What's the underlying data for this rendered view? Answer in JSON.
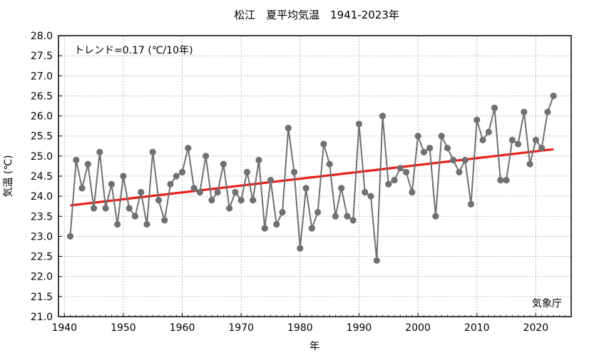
{
  "chart_data": {
    "type": "line",
    "title": "松江　夏平均気温　1941-2023年",
    "xlabel": "年",
    "ylabel": "気温 (℃)",
    "trend_label": "トレンド=0.17 (℃/10年)",
    "source": "気象庁",
    "xlim": [
      1939,
      2026
    ],
    "ylim": [
      21.0,
      28.0
    ],
    "xticks": [
      1940,
      1950,
      1960,
      1970,
      1980,
      1990,
      2000,
      2010,
      2020
    ],
    "yticks": [
      "21.0",
      "21.5",
      "22.0",
      "22.5",
      "23.0",
      "23.5",
      "24.0",
      "24.5",
      "25.0",
      "25.5",
      "26.0",
      "26.5",
      "27.0",
      "27.5",
      "28.0"
    ],
    "grid": true,
    "series": [
      {
        "color": "#707070",
        "x": [
          1941,
          1942,
          1943,
          1944,
          1945,
          1946,
          1947,
          1948,
          1949,
          1950,
          1951,
          1952,
          1953,
          1954,
          1955,
          1956,
          1957,
          1958,
          1959,
          1960,
          1961,
          1962,
          1963,
          1964,
          1965,
          1966,
          1967,
          1968,
          1969,
          1970,
          1971,
          1972,
          1973,
          1974,
          1975,
          1976,
          1977,
          1978,
          1979,
          1980,
          1981,
          1982,
          1983,
          1984,
          1985,
          1986,
          1987,
          1988,
          1989,
          1990,
          1991,
          1992,
          1993,
          1994,
          1995,
          1996,
          1997,
          1998,
          1999,
          2000,
          2001,
          2002,
          2003,
          2004,
          2005,
          2006,
          2007,
          2008,
          2009,
          2010,
          2011,
          2012,
          2013,
          2014,
          2015,
          2016,
          2017,
          2018,
          2019,
          2020,
          2021,
          2022,
          2023
        ],
        "y": [
          23.0,
          24.9,
          24.2,
          24.8,
          23.7,
          25.1,
          23.7,
          24.3,
          23.3,
          24.5,
          23.7,
          23.5,
          24.1,
          23.3,
          25.1,
          23.9,
          23.4,
          24.3,
          24.5,
          24.6,
          25.2,
          24.2,
          24.1,
          25.0,
          23.9,
          24.1,
          24.8,
          23.7,
          24.1,
          23.9,
          24.6,
          23.9,
          24.9,
          23.2,
          24.4,
          23.3,
          23.6,
          25.7,
          24.6,
          22.7,
          24.2,
          23.2,
          23.6,
          25.3,
          24.8,
          23.5,
          24.2,
          23.5,
          23.4,
          25.8,
          24.1,
          24.0,
          22.4,
          26.0,
          24.3,
          24.4,
          24.7,
          24.6,
          24.1,
          25.5,
          25.1,
          25.2,
          23.5,
          25.5,
          25.2,
          24.9,
          24.6,
          24.9,
          23.8,
          25.9,
          25.4,
          25.6,
          26.2,
          24.4,
          24.4,
          25.4,
          25.3,
          26.1,
          24.8,
          25.4,
          25.2,
          26.1,
          26.5
        ]
      }
    ],
    "trend": {
      "color": "#e8211b",
      "x": [
        1941,
        2023
      ],
      "y": [
        23.77,
        25.17
      ]
    }
  }
}
